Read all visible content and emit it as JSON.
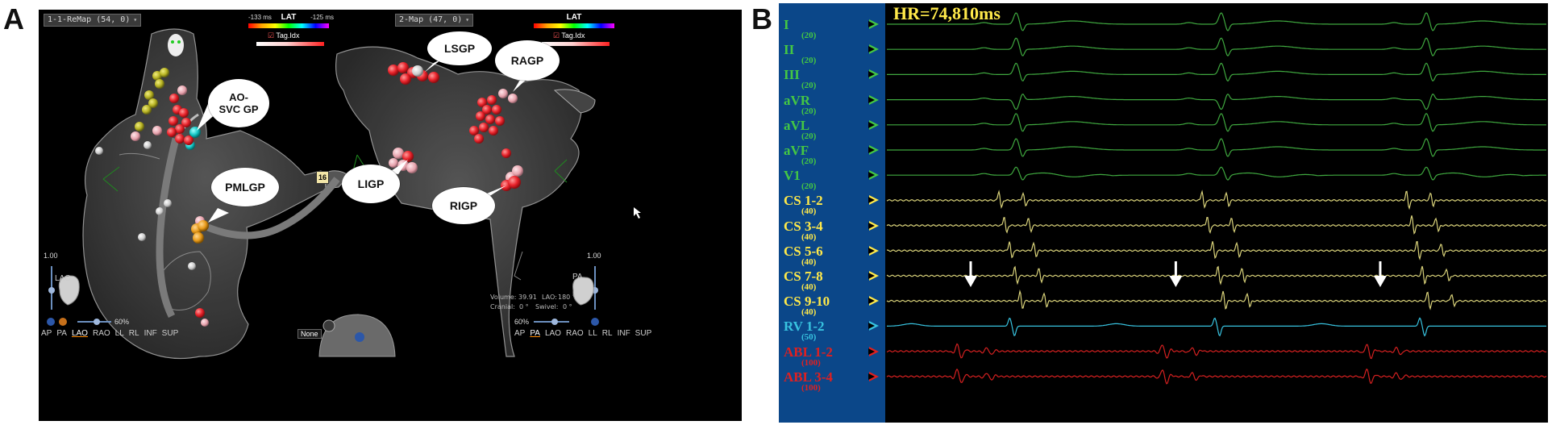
{
  "panel_a": {
    "letter": "A",
    "left_map": {
      "title": "1-1-ReMap (54, 0)",
      "lat_label": "LAT",
      "lat_min": "-133 ms",
      "lat_max": "-125 ms",
      "tag_label": "Tag.Idx",
      "view": "LAO",
      "zoom": "60%",
      "scale": "1.00",
      "view_buttons": [
        "AP",
        "PA",
        "LAO",
        "RAO",
        "LL",
        "RL",
        "INF",
        "SUP"
      ]
    },
    "right_map": {
      "title": "2-Map (47, 0)",
      "lat_label": "LAT",
      "tag_label": "Tag.Idx",
      "view": "PA",
      "zoom": "60%",
      "scale": "1.00",
      "view_buttons": [
        "AP",
        "PA",
        "LAO",
        "RAO",
        "LL",
        "RL",
        "INF",
        "SUP"
      ],
      "info": {
        "volume": "Volume: 39.91",
        "lao": "LAO:",
        "lao_val": "180 °",
        "cranial": "Cranial:",
        "cranial_val": "0 °",
        "swivel": "Swivel:",
        "swivel_val": "0 °"
      }
    },
    "callouts": {
      "ao_svc": [
        "AO-",
        "SVC GP"
      ],
      "pmlgp": "PMLGP",
      "lsgp": "LSGP",
      "ragp": "RAGP",
      "ligp": "LIGP",
      "rigp": "RIGP"
    },
    "none_label": "None",
    "catheter_tag": "16"
  },
  "panel_b": {
    "letter": "B",
    "hr_text": "HR=74,810ms",
    "channels": [
      {
        "name": "I",
        "gain": "(20)",
        "color": "#44c744"
      },
      {
        "name": "II",
        "gain": "(20)",
        "color": "#44c744"
      },
      {
        "name": "III",
        "gain": "(20)",
        "color": "#44c744"
      },
      {
        "name": "aVR",
        "gain": "(20)",
        "color": "#44c744"
      },
      {
        "name": "aVL",
        "gain": "(20)",
        "color": "#44c744"
      },
      {
        "name": "aVF",
        "gain": "(20)",
        "color": "#44c744"
      },
      {
        "name": "V1",
        "gain": "(20)",
        "color": "#44c744"
      },
      {
        "name": "CS 1-2",
        "gain": "(40)",
        "color": "#ffe94a"
      },
      {
        "name": "CS 3-4",
        "gain": "(40)",
        "color": "#ffe94a"
      },
      {
        "name": "CS 5-6",
        "gain": "(40)",
        "color": "#ffe94a"
      },
      {
        "name": "CS 7-8",
        "gain": "(40)",
        "color": "#ffe94a"
      },
      {
        "name": "CS 9-10",
        "gain": "(40)",
        "color": "#ffe94a"
      },
      {
        "name": "RV 1-2",
        "gain": "(50)",
        "color": "#38c3e0"
      },
      {
        "name": "ABL 1-2",
        "gain": "(100)",
        "color": "#e02020"
      },
      {
        "name": "ABL 3-4",
        "gain": "(100)",
        "color": "#e02020"
      }
    ]
  },
  "colors": {
    "ecg_trace": "#3fa83f",
    "cs_trace": "#d9d27a",
    "rv_trace": "#38c3e0",
    "abl_trace": "#d42020",
    "label_panel": "#0b4789",
    "gp_red": "#e8222a",
    "gp_yellow": "#b7b323",
    "gp_white": "#d8d8d8",
    "gp_pink": "#f0b0b8",
    "gp_cyan": "#15c6c6",
    "gp_orange": "#e89a1a"
  }
}
